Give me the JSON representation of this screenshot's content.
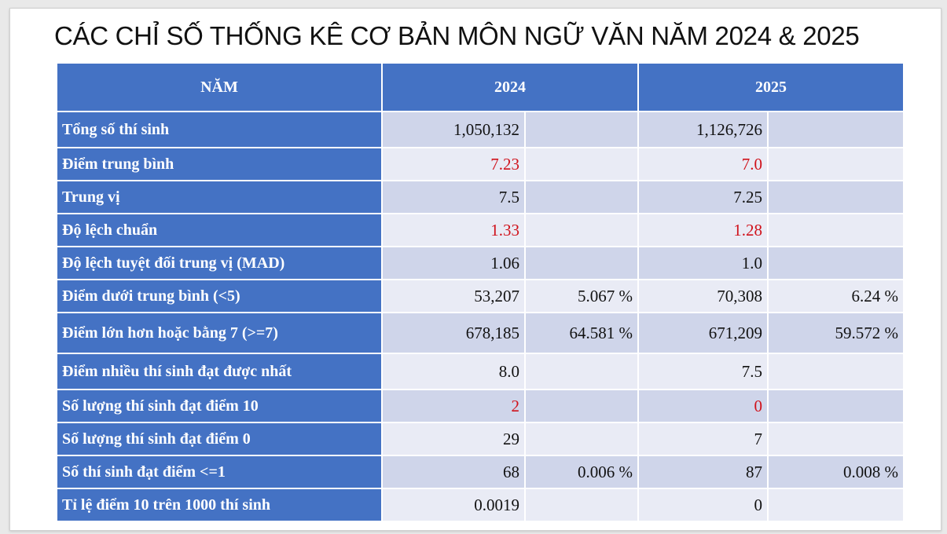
{
  "title": "CÁC CHỈ SỐ THỐNG KÊ CƠ BẢN MÔN NGỮ VĂN NĂM 2024 & 2025",
  "table": {
    "headers": [
      "NĂM",
      "2024",
      "2025"
    ],
    "rows": [
      {
        "label": "Tổng số thí sinh",
        "v2024": "1,050,132",
        "p2024": "",
        "v2025": "1,126,726",
        "p2025": ""
      },
      {
        "label": "Điểm trung bình",
        "v2024": "7.23",
        "p2024": "",
        "v2025": "7.0",
        "p2025": ""
      },
      {
        "label": "Trung vị",
        "v2024": "7.5",
        "p2024": "",
        "v2025": "7.25",
        "p2025": ""
      },
      {
        "label": "Độ lệch chuẩn",
        "v2024": "1.33",
        "p2024": "",
        "v2025": "1.28",
        "p2025": ""
      },
      {
        "label": "Độ lệch tuyệt đối trung vị (MAD)",
        "v2024": "1.06",
        "p2024": "",
        "v2025": "1.0",
        "p2025": ""
      },
      {
        "label": "Điểm dưới trung bình (<5)",
        "v2024": "53,207",
        "p2024": "5.067 %",
        "v2025": "70,308",
        "p2025": "6.24 %"
      },
      {
        "label": "Điểm lớn hơn hoặc bằng 7 (>=7)",
        "v2024": "678,185",
        "p2024": "64.581 %",
        "v2025": "671,209",
        "p2025": "59.572 %"
      },
      {
        "label": "Điểm nhiều thí sinh đạt được nhất",
        "v2024": "8.0",
        "p2024": "",
        "v2025": "7.5",
        "p2025": ""
      },
      {
        "label": "Số lượng thí sinh đạt điểm 10",
        "v2024": "2",
        "p2024": "",
        "v2025": "0",
        "p2025": ""
      },
      {
        "label": "Số lượng thí sinh đạt điểm 0",
        "v2024": "29",
        "p2024": "",
        "v2025": "7",
        "p2025": ""
      },
      {
        "label": "Số thí sinh đạt điểm <=1",
        "v2024": "68",
        "p2024": "0.006 %",
        "v2025": "87",
        "p2025": "0.008 %"
      },
      {
        "label": "Tỉ lệ điểm 10 trên 1000 thí sinh",
        "v2024": "0.0019",
        "p2024": "",
        "v2025": "0",
        "p2025": ""
      }
    ]
  },
  "colors": {
    "header_bg": "#4472c4",
    "highlight_red": "#d0121b"
  }
}
